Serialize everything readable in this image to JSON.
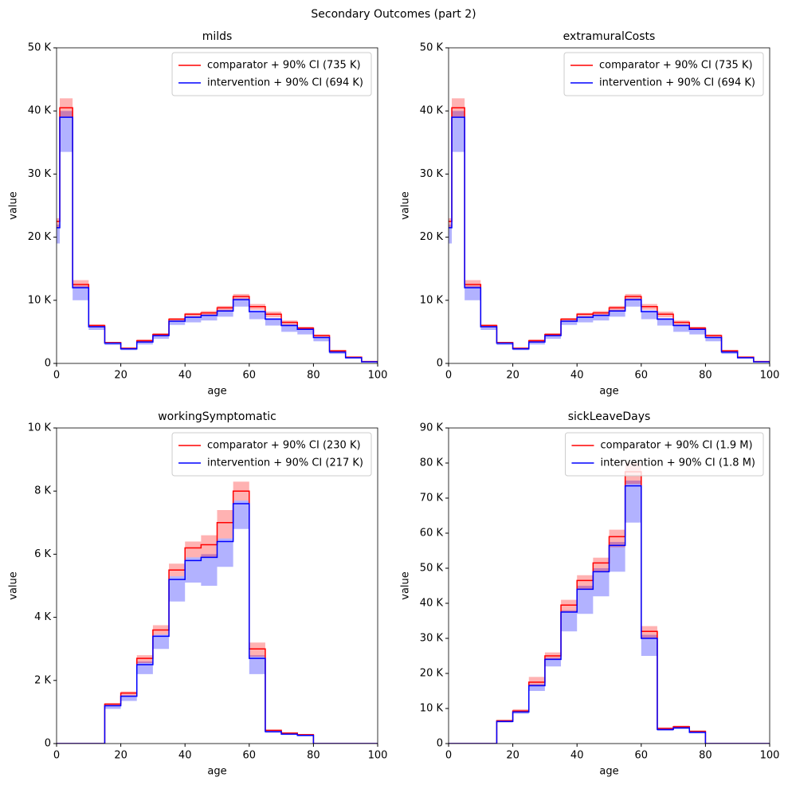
{
  "title": "Secondary Outcomes (part 2)",
  "chart_data": [
    {
      "type": "step",
      "title": "milds",
      "xlabel": "age",
      "ylabel": "value",
      "legend": "upper right",
      "x": [
        0,
        1,
        5,
        10,
        15,
        20,
        25,
        30,
        35,
        40,
        45,
        50,
        55,
        60,
        65,
        70,
        75,
        80,
        85,
        90,
        95,
        100
      ],
      "xlim": [
        0,
        100
      ],
      "xticks": [
        0,
        20,
        40,
        60,
        80,
        100
      ],
      "ylim": [
        0,
        50000
      ],
      "yticks": [
        0,
        {
          "value": 10000,
          "label": "10 K"
        },
        {
          "value": 20000,
          "label": "20 K"
        },
        {
          "value": 30000,
          "label": "30 K"
        },
        {
          "value": 40000,
          "label": "40 K"
        },
        {
          "value": 50000,
          "label": "50 K"
        }
      ],
      "series": [
        {
          "name": "comparator + 90% CI (735 K)",
          "color": "#ff0000",
          "values": [
            22500,
            40500,
            12500,
            6000,
            3300,
            2400,
            3600,
            4600,
            7000,
            7800,
            8000,
            8800,
            10600,
            9000,
            7800,
            6500,
            5600,
            4400,
            2000,
            1000,
            300,
            0
          ],
          "lower": [
            21500,
            39000,
            12000,
            5800,
            3200,
            2300,
            3400,
            4400,
            6700,
            7400,
            7700,
            8400,
            10100,
            8500,
            7300,
            6100,
            5400,
            4200,
            1900,
            950,
            280,
            0
          ],
          "upper": [
            23000,
            42000,
            13200,
            6200,
            3400,
            2500,
            3800,
            4800,
            7200,
            8000,
            8300,
            9100,
            11000,
            9400,
            8200,
            6800,
            5800,
            4600,
            2100,
            1050,
            320,
            0
          ]
        },
        {
          "name": "intervention + 90% CI (694 K)",
          "color": "#0000ff",
          "values": [
            21500,
            39000,
            12000,
            5800,
            3200,
            2300,
            3400,
            4400,
            6700,
            7300,
            7600,
            8300,
            10100,
            8200,
            7000,
            6000,
            5400,
            4100,
            1800,
            900,
            250,
            0
          ],
          "lower": [
            19000,
            33500,
            10000,
            5300,
            2900,
            2100,
            3000,
            3900,
            6100,
            6500,
            6800,
            7400,
            9000,
            7000,
            6000,
            5000,
            4600,
            3500,
            1500,
            750,
            200,
            0
          ],
          "upper": [
            22000,
            40000,
            12300,
            5900,
            3250,
            2350,
            3500,
            4500,
            6800,
            7500,
            7800,
            8500,
            10300,
            8400,
            7200,
            6200,
            5500,
            4200,
            1850,
            920,
            260,
            0
          ]
        }
      ]
    },
    {
      "type": "step",
      "title": "extramuralCosts",
      "xlabel": "age",
      "ylabel": "value",
      "legend": "upper right",
      "x": [
        0,
        1,
        5,
        10,
        15,
        20,
        25,
        30,
        35,
        40,
        45,
        50,
        55,
        60,
        65,
        70,
        75,
        80,
        85,
        90,
        95,
        100
      ],
      "xlim": [
        0,
        100
      ],
      "xticks": [
        0,
        20,
        40,
        60,
        80,
        100
      ],
      "ylim": [
        0,
        50000
      ],
      "yticks": [
        0,
        {
          "value": 10000,
          "label": "10 K"
        },
        {
          "value": 20000,
          "label": "20 K"
        },
        {
          "value": 30000,
          "label": "30 K"
        },
        {
          "value": 40000,
          "label": "40 K"
        },
        {
          "value": 50000,
          "label": "50 K"
        }
      ],
      "series": [
        {
          "name": "comparator + 90% CI (735 K)",
          "color": "#ff0000",
          "values": [
            22500,
            40500,
            12500,
            6000,
            3300,
            2400,
            3600,
            4600,
            7000,
            7800,
            8000,
            8800,
            10600,
            9000,
            7800,
            6500,
            5600,
            4400,
            2000,
            1000,
            300,
            0
          ],
          "lower": [
            21500,
            39000,
            12000,
            5800,
            3200,
            2300,
            3400,
            4400,
            6700,
            7400,
            7700,
            8400,
            10100,
            8500,
            7300,
            6100,
            5400,
            4200,
            1900,
            950,
            280,
            0
          ],
          "upper": [
            23000,
            42000,
            13200,
            6200,
            3400,
            2500,
            3800,
            4800,
            7200,
            8000,
            8300,
            9100,
            11000,
            9400,
            8200,
            6800,
            5800,
            4600,
            2100,
            1050,
            320,
            0
          ]
        },
        {
          "name": "intervention + 90% CI (694 K)",
          "color": "#0000ff",
          "values": [
            21500,
            39000,
            12000,
            5800,
            3200,
            2300,
            3400,
            4400,
            6700,
            7300,
            7600,
            8300,
            10100,
            8200,
            7000,
            6000,
            5400,
            4100,
            1800,
            900,
            250,
            0
          ],
          "lower": [
            19000,
            33500,
            10000,
            5300,
            2900,
            2100,
            3000,
            3900,
            6100,
            6500,
            6800,
            7400,
            9000,
            7000,
            6000,
            5000,
            4600,
            3500,
            1500,
            750,
            200,
            0
          ],
          "upper": [
            22000,
            40000,
            12300,
            5900,
            3250,
            2350,
            3500,
            4500,
            6800,
            7500,
            7800,
            8500,
            10300,
            8400,
            7200,
            6200,
            5500,
            4200,
            1850,
            920,
            260,
            0
          ]
        }
      ]
    },
    {
      "type": "step",
      "title": "workingSymptomatic",
      "xlabel": "age",
      "ylabel": "value",
      "legend": "upper right",
      "x": [
        0,
        1,
        5,
        10,
        15,
        20,
        25,
        30,
        35,
        40,
        45,
        50,
        55,
        60,
        65,
        70,
        75,
        80,
        85,
        90,
        95,
        100
      ],
      "xlim": [
        0,
        100
      ],
      "xticks": [
        0,
        20,
        40,
        60,
        80,
        100
      ],
      "ylim": [
        0,
        10000
      ],
      "yticks": [
        0,
        {
          "value": 2000,
          "label": "2 K"
        },
        {
          "value": 4000,
          "label": "4 K"
        },
        {
          "value": 6000,
          "label": "6 K"
        },
        {
          "value": 8000,
          "label": "8 K"
        },
        {
          "value": 10000,
          "label": "10 K"
        }
      ],
      "series": [
        {
          "name": "comparator + 90% CI (230 K)",
          "color": "#ff0000",
          "values": [
            0,
            0,
            0,
            0,
            1250,
            1600,
            2700,
            3600,
            5500,
            6200,
            6300,
            7000,
            8000,
            3000,
            420,
            330,
            280,
            0,
            0,
            0,
            0,
            0
          ],
          "lower": [
            0,
            0,
            0,
            0,
            1200,
            1520,
            2550,
            3450,
            5300,
            5900,
            5900,
            6500,
            7700,
            2750,
            390,
            310,
            265,
            0,
            0,
            0,
            0,
            0
          ],
          "upper": [
            0,
            0,
            0,
            0,
            1280,
            1650,
            2800,
            3750,
            5700,
            6400,
            6600,
            7400,
            8300,
            3200,
            440,
            350,
            300,
            0,
            0,
            0,
            0,
            0
          ]
        },
        {
          "name": "intervention + 90% CI (217 K)",
          "color": "#0000ff",
          "values": [
            0,
            0,
            0,
            0,
            1200,
            1500,
            2500,
            3400,
            5200,
            5800,
            5900,
            6400,
            7600,
            2700,
            380,
            300,
            260,
            0,
            0,
            0,
            0,
            0
          ],
          "lower": [
            0,
            0,
            0,
            0,
            1100,
            1350,
            2200,
            3000,
            4500,
            5100,
            5000,
            5600,
            6800,
            2200,
            340,
            270,
            230,
            0,
            0,
            0,
            0,
            0
          ],
          "upper": [
            0,
            0,
            0,
            0,
            1220,
            1530,
            2600,
            3450,
            5300,
            5900,
            6000,
            6500,
            7700,
            2800,
            390,
            310,
            265,
            0,
            0,
            0,
            0,
            0
          ]
        }
      ]
    },
    {
      "type": "step",
      "title": "sickLeaveDays",
      "xlabel": "age",
      "ylabel": "value",
      "legend": "upper right",
      "x": [
        0,
        1,
        5,
        10,
        15,
        20,
        25,
        30,
        35,
        40,
        45,
        50,
        55,
        60,
        65,
        70,
        75,
        80,
        85,
        90,
        95,
        100
      ],
      "xlim": [
        0,
        100
      ],
      "xticks": [
        0,
        20,
        40,
        60,
        80,
        100
      ],
      "ylim": [
        0,
        90000
      ],
      "yticks": [
        0,
        {
          "value": 10000,
          "label": "10 K"
        },
        {
          "value": 20000,
          "label": "20 K"
        },
        {
          "value": 30000,
          "label": "30 K"
        },
        {
          "value": 40000,
          "label": "40 K"
        },
        {
          "value": 50000,
          "label": "50 K"
        },
        {
          "value": 60000,
          "label": "60 K"
        },
        {
          "value": 70000,
          "label": "70 K"
        },
        {
          "value": 80000,
          "label": "80 K"
        },
        {
          "value": 90000,
          "label": "90 K"
        }
      ],
      "series": [
        {
          "name": "comparator + 90% CI (1.9 M)",
          "color": "#ff0000",
          "values": [
            0,
            0,
            0,
            0,
            6500,
            9300,
            17500,
            25000,
            39500,
            46500,
            51500,
            59000,
            77500,
            32000,
            4300,
            4800,
            3500,
            0,
            0,
            0,
            0,
            0
          ],
          "lower": [
            0,
            0,
            0,
            0,
            6200,
            9000,
            16500,
            24000,
            37500,
            44000,
            49000,
            56000,
            74000,
            30000,
            4100,
            4500,
            3300,
            0,
            0,
            0,
            0,
            0
          ],
          "upper": [
            0,
            0,
            0,
            0,
            6800,
            9800,
            19000,
            26000,
            41000,
            48000,
            53000,
            61000,
            80000,
            33500,
            4600,
            5100,
            3700,
            0,
            0,
            0,
            0,
            0
          ]
        },
        {
          "name": "intervention + 90% CI (1.8 M)",
          "color": "#0000ff",
          "values": [
            0,
            0,
            0,
            0,
            6300,
            9000,
            16500,
            24000,
            37500,
            44000,
            49000,
            56500,
            73500,
            30000,
            4000,
            4500,
            3200,
            0,
            0,
            0,
            0,
            0
          ],
          "lower": [
            0,
            0,
            0,
            0,
            6000,
            8500,
            15000,
            22000,
            32000,
            37000,
            42000,
            49000,
            63000,
            25000,
            3600,
            4100,
            2900,
            0,
            0,
            0,
            0,
            0
          ],
          "upper": [
            0,
            0,
            0,
            0,
            6400,
            9200,
            17000,
            24500,
            38000,
            45000,
            50000,
            57500,
            75000,
            31000,
            4100,
            4600,
            3300,
            0,
            0,
            0,
            0,
            0
          ]
        }
      ]
    }
  ]
}
